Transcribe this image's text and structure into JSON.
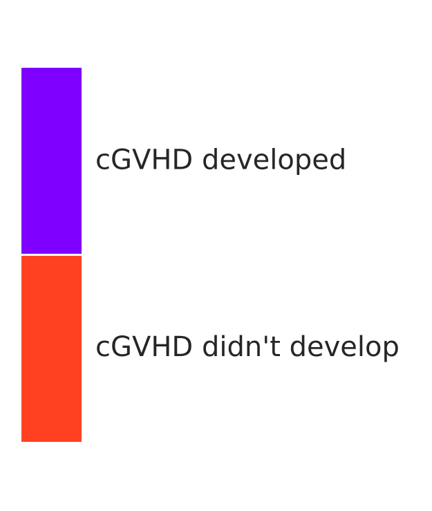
{
  "chart_data": {
    "type": "bar",
    "stacked": true,
    "orientation": "vertical",
    "categories": [
      "cGVHD developed",
      "cGVHD didn't develop"
    ],
    "values": [
      1,
      1
    ],
    "colors": [
      "#7f00ff",
      "#ff4122"
    ],
    "title": "",
    "xlabel": "",
    "ylabel": "",
    "grid": false
  }
}
